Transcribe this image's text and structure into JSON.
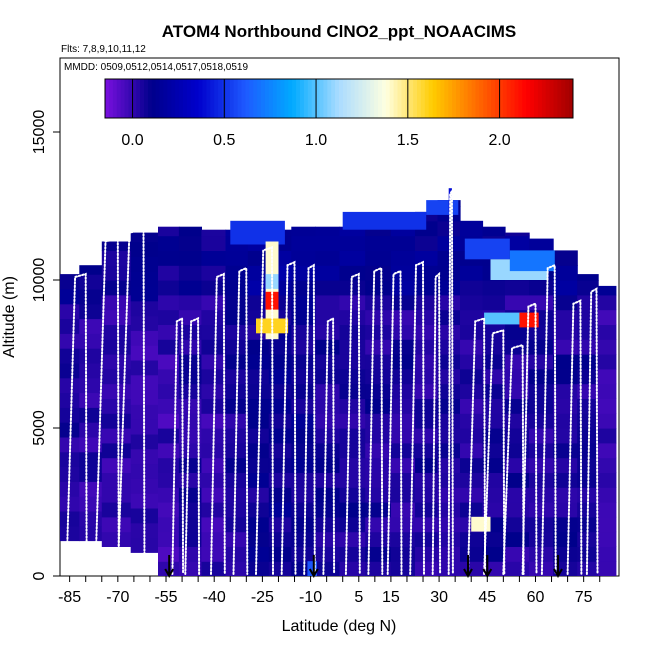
{
  "chart_data": {
    "type": "heatmap",
    "title": "ATOM4 Northbound ClNO2_ppt_NOAACIMS",
    "subtitle_flights": "Flts: 7,8,9,10,11,12",
    "subtitle_dates": "MMDD: 0509,0512,0514,0517,0518,0519",
    "xlabel": "Latitude (deg N)",
    "ylabel": "Altitude (m)",
    "xlim": [
      -88,
      86
    ],
    "ylim": [
      0,
      17500
    ],
    "x_tick_labels": [
      "-85",
      "-70",
      "-55",
      "-40",
      "-25",
      "-10",
      "5",
      "15",
      "30",
      "45",
      "60",
      "75"
    ],
    "x_ticks": [
      -85,
      -70,
      -55,
      -40,
      -25,
      -10,
      5,
      15,
      30,
      45,
      60,
      75
    ],
    "y_tick_labels": [
      "0",
      "5000",
      "10000",
      "15000"
    ],
    "y_ticks": [
      0,
      5000,
      10000,
      15000
    ],
    "colorbar": {
      "range": [
        -0.15,
        2.4
      ],
      "tick_labels": [
        "0.0",
        "0.5",
        "1.0",
        "1.5",
        "2.0"
      ],
      "ticks": [
        0,
        0.5,
        1.0,
        1.5,
        2.0
      ],
      "colors": [
        "#7a10e0",
        "#00008b",
        "#0000cd",
        "#1e5aff",
        "#00aaff",
        "#aadcff",
        "#ffffe0",
        "#ffcc00",
        "#ff6600",
        "#ff0000",
        "#a00000"
      ]
    },
    "arrows_at_latitude": [
      -54,
      -9,
      39,
      45,
      67
    ],
    "columns": [
      {
        "lat": -85,
        "top": 10200,
        "bottom": 1200,
        "value": 0.05
      },
      {
        "lat": -79,
        "top": 10500,
        "bottom": 1200,
        "value": 0.02
      },
      {
        "lat": -71,
        "top": 11300,
        "bottom": 1000,
        "value": 0.02
      },
      {
        "lat": -61,
        "top": 11600,
        "bottom": 800,
        "value": 0.0
      },
      {
        "lat": -54,
        "top": 11800,
        "bottom": 0,
        "value": 0.0
      },
      {
        "lat": -48,
        "top": 11800,
        "bottom": 0,
        "value": 0.05
      },
      {
        "lat": -40,
        "top": 11700,
        "bottom": 0,
        "value": 0.02
      },
      {
        "lat": -33,
        "top": 11700,
        "bottom": 0,
        "value": 0.05
      },
      {
        "lat": -26,
        "top": 11700,
        "bottom": 0,
        "value": 0.08
      },
      {
        "lat": -20,
        "top": 11700,
        "bottom": 0,
        "value": 0.1
      },
      {
        "lat": -12,
        "top": 11800,
        "bottom": 0,
        "value": 0.1
      },
      {
        "lat": -5,
        "top": 11800,
        "bottom": 0,
        "value": 0.05
      },
      {
        "lat": 3,
        "top": 11800,
        "bottom": 0,
        "value": 0.05
      },
      {
        "lat": 11,
        "top": 11800,
        "bottom": 0,
        "value": 0.05
      },
      {
        "lat": 19,
        "top": 11800,
        "bottom": 0,
        "value": 0.05
      },
      {
        "lat": 26,
        "top": 12300,
        "bottom": 0,
        "value": 0.05
      },
      {
        "lat": 33,
        "top": 12700,
        "bottom": 0,
        "value": 0.05
      },
      {
        "lat": 40,
        "top": 12000,
        "bottom": 0,
        "value": 0.05
      },
      {
        "lat": 47,
        "top": 11800,
        "bottom": 0,
        "value": 0.05
      },
      {
        "lat": 54,
        "top": 11600,
        "bottom": 0,
        "value": 0.05
      },
      {
        "lat": 62,
        "top": 11400,
        "bottom": 0,
        "value": 0.05
      },
      {
        "lat": 69,
        "top": 11000,
        "bottom": 0,
        "value": 0.05
      },
      {
        "lat": 77,
        "top": 10200,
        "bottom": 0,
        "value": 0.05
      },
      {
        "lat": 82,
        "top": 9800,
        "bottom": 0,
        "value": 0.02
      }
    ],
    "features": [
      {
        "lat0": -35,
        "lat1": -18,
        "alt0": 11200,
        "alt1": 12000,
        "value": 0.5
      },
      {
        "lat0": -24,
        "lat1": -20,
        "alt0": 8000,
        "alt1": 11300,
        "value": 1.4
      },
      {
        "lat0": -27,
        "lat1": -17,
        "alt0": 8200,
        "alt1": 8700,
        "value": 1.6
      },
      {
        "lat0": -24,
        "lat1": -20,
        "alt0": 9000,
        "alt1": 9600,
        "value": 2.1
      },
      {
        "lat0": -24,
        "lat1": -20,
        "alt0": 9700,
        "alt1": 10200,
        "value": 1.1
      },
      {
        "lat0": 0,
        "lat1": 26,
        "alt0": 11700,
        "alt1": 12300,
        "value": 0.5
      },
      {
        "lat0": 26,
        "lat1": 36,
        "alt0": 12200,
        "alt1": 12700,
        "value": 0.55
      },
      {
        "lat0": 38,
        "lat1": 52,
        "alt0": 10700,
        "alt1": 11400,
        "value": 0.55
      },
      {
        "lat0": 46,
        "lat1": 64,
        "alt0": 10000,
        "alt1": 10700,
        "value": 1.1
      },
      {
        "lat0": 52,
        "lat1": 66,
        "alt0": 10300,
        "alt1": 11000,
        "value": 0.7
      },
      {
        "lat0": 44,
        "lat1": 58,
        "alt0": 8500,
        "alt1": 8900,
        "value": 1.0
      },
      {
        "lat0": 55,
        "lat1": 61,
        "alt0": 8400,
        "alt1": 8900,
        "value": 2.1
      },
      {
        "lat0": 40,
        "lat1": 46,
        "alt0": 1500,
        "alt1": 2000,
        "value": 1.4
      },
      {
        "lat0": -11,
        "lat1": -8,
        "alt0": 0,
        "alt1": 500,
        "value": 0.6
      },
      {
        "lat0": 33,
        "lat1": 34,
        "alt0": 12300,
        "alt1": 13100,
        "value": 0.4
      }
    ],
    "flight_profiles": [
      {
        "lat0": -86,
        "lat1": -80,
        "top": 10100
      },
      {
        "lat0": -77,
        "lat1": -70,
        "top": 11300
      },
      {
        "lat0": -70,
        "lat1": -62,
        "top": 11600
      },
      {
        "lat0": -53,
        "lat1": -50,
        "top": 8600
      },
      {
        "lat0": -49,
        "lat1": -45,
        "top": 8600
      },
      {
        "lat0": -41,
        "lat1": -37,
        "top": 10100
      },
      {
        "lat0": -34,
        "lat1": -30,
        "top": 10300
      },
      {
        "lat0": -27,
        "lat1": -22,
        "top": 11000
      },
      {
        "lat0": -19,
        "lat1": -15,
        "top": 10500
      },
      {
        "lat0": -12,
        "lat1": -9,
        "top": 10400
      },
      {
        "lat0": -6,
        "lat1": -3,
        "top": 8600
      },
      {
        "lat0": 1,
        "lat1": 5,
        "top": 10100
      },
      {
        "lat0": 8,
        "lat1": 12,
        "top": 10300
      },
      {
        "lat0": 14,
        "lat1": 18,
        "top": 10200
      },
      {
        "lat0": 21,
        "lat1": 25,
        "top": 10500
      },
      {
        "lat0": 28,
        "lat1": 30,
        "top": 10100
      },
      {
        "lat0": 33,
        "lat1": 34,
        "top": 12900
      },
      {
        "lat0": 39,
        "lat1": 44,
        "top": 8600
      },
      {
        "lat0": 44,
        "lat1": 50,
        "top": 8200
      },
      {
        "lat0": 50,
        "lat1": 56,
        "top": 7700
      },
      {
        "lat0": 56,
        "lat1": 60,
        "top": 9100
      },
      {
        "lat0": 62,
        "lat1": 66,
        "top": 10400
      },
      {
        "lat0": 70,
        "lat1": 74,
        "top": 9200
      },
      {
        "lat0": 76,
        "lat1": 79,
        "top": 9600
      }
    ]
  }
}
